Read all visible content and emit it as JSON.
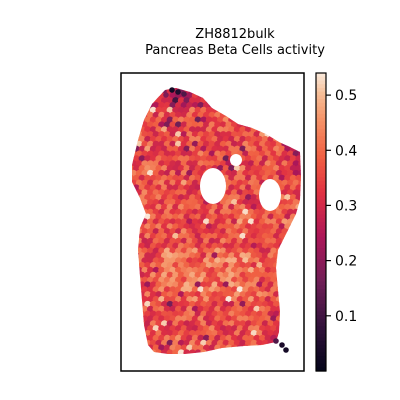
{
  "chart_data": {
    "type": "heatmap",
    "title": "ZH8812bulk",
    "subtitle": "Pancreas Beta Cells activity",
    "xlabel": "",
    "ylabel": "",
    "colorbar": {
      "colormap": "rocket",
      "range": [
        0.0,
        0.54
      ],
      "ticks": [
        0.1,
        0.2,
        0.3,
        0.4,
        0.5
      ],
      "tick_labels": [
        "0.1",
        "0.2",
        "0.3",
        "0.4",
        "0.5"
      ]
    },
    "value_summary": {
      "typical_range": [
        0.3,
        0.45
      ],
      "low_spots_near": [
        "top edge",
        "right edge",
        "bottom-right corner"
      ]
    },
    "spatial_holes": 3,
    "grid": false,
    "axes_ticks": false
  }
}
